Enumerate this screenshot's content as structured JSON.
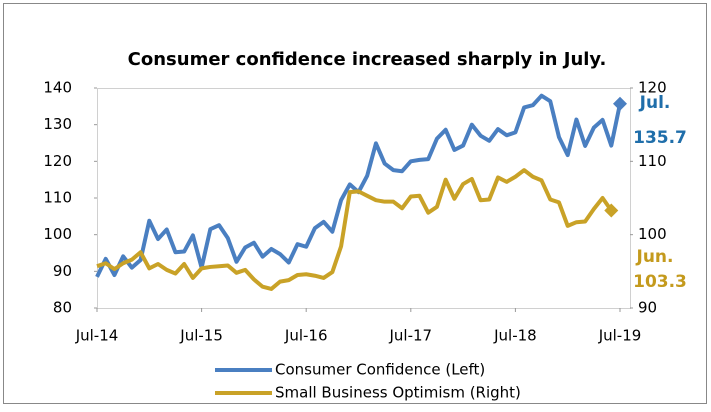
{
  "chart_data": {
    "type": "line",
    "title": "Consumer confidence increased sharply in July.",
    "categories": [
      "Jul-14",
      null,
      null,
      null,
      null,
      null,
      null,
      null,
      null,
      null,
      null,
      null,
      "Jul-15",
      null,
      null,
      null,
      null,
      null,
      null,
      null,
      null,
      null,
      null,
      null,
      "Jul-16",
      null,
      null,
      null,
      null,
      null,
      null,
      null,
      null,
      null,
      null,
      null,
      "Jul-17",
      null,
      null,
      null,
      null,
      null,
      null,
      null,
      null,
      null,
      null,
      null,
      "Jul-18",
      null,
      null,
      null,
      null,
      null,
      null,
      null,
      null,
      null,
      null,
      null,
      "Jul-19"
    ],
    "series": [
      {
        "name": "Consumer Confidence (Left)",
        "color": "#4a7fc1",
        "axis": "y",
        "values": [
          88.5,
          93.4,
          89.0,
          94.1,
          91.0,
          93.1,
          103.8,
          98.8,
          101.4,
          95.2,
          95.4,
          99.8,
          91.0,
          101.5,
          102.6,
          99.1,
          92.6,
          96.5,
          97.8,
          94.0,
          96.1,
          94.7,
          92.4,
          97.4,
          96.7,
          101.8,
          103.5,
          100.8,
          109.4,
          113.7,
          111.6,
          116.1,
          124.9,
          119.4,
          117.6,
          117.3,
          120.0,
          120.4,
          120.6,
          126.2,
          128.6,
          123.1,
          124.3,
          130.0,
          127.0,
          125.6,
          128.8,
          127.1,
          127.9,
          134.7,
          135.3,
          137.9,
          136.4,
          126.6,
          121.7,
          131.4,
          124.2,
          129.2,
          131.3,
          124.3,
          135.7
        ]
      },
      {
        "name": "Small Business Optimism (Right)",
        "color": "#c9a227",
        "axis": "y2",
        "values": [
          95.7,
          96.1,
          95.3,
          96.1,
          96.6,
          97.6,
          95.4,
          96.0,
          95.2,
          94.7,
          96.0,
          94.1,
          95.4,
          95.6,
          95.7,
          95.8,
          94.8,
          95.2,
          93.9,
          92.9,
          92.6,
          93.6,
          93.8,
          94.5,
          94.6,
          94.4,
          94.1,
          94.9,
          98.4,
          105.8,
          105.9,
          105.3,
          104.7,
          104.5,
          104.5,
          103.6,
          105.2,
          105.3,
          103.0,
          103.8,
          107.5,
          104.9,
          106.9,
          107.6,
          104.7,
          104.8,
          107.8,
          107.2,
          107.9,
          108.8,
          107.9,
          107.4,
          104.8,
          104.4,
          101.2,
          101.7,
          101.8,
          103.5,
          105.0,
          103.3,
          null
        ]
      }
    ],
    "ylim": [
      80,
      140
    ],
    "yticks": [
      80,
      90,
      100,
      110,
      120,
      130,
      140
    ],
    "y2lim": [
      90,
      120
    ],
    "y2ticks": [
      90,
      100,
      110,
      120
    ],
    "annotations": [
      {
        "text": "Jul.",
        "color": "#1f6eaa"
      },
      {
        "text": "135.7",
        "color": "#1f6eaa"
      },
      {
        "text": "Jun.",
        "color": "#c49a1d"
      },
      {
        "text": "103.3",
        "color": "#c49a1d"
      }
    ]
  }
}
